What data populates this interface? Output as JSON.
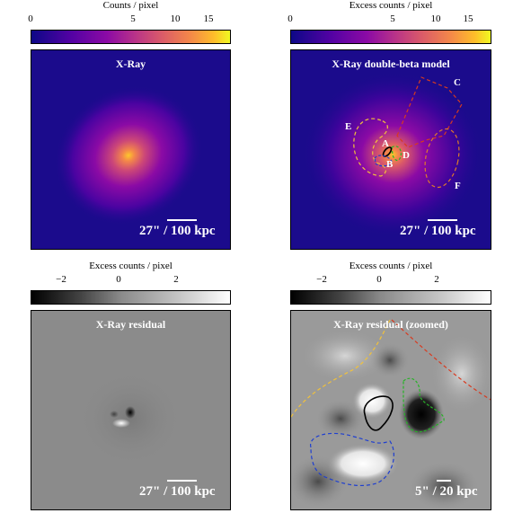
{
  "panels": {
    "top_left": {
      "colorbar_label": "Counts / pixel",
      "ticks": [
        "0",
        "5",
        "10",
        "15"
      ],
      "title": "X-Ray",
      "scale_label": "27\" / 100 kpc"
    },
    "top_right": {
      "colorbar_label": "Excess counts / pixel",
      "ticks": [
        "0",
        "5",
        "10",
        "15"
      ],
      "title": "X-Ray double-beta model",
      "scale_label": "27\" / 100 kpc",
      "regions": [
        "A",
        "B",
        "C",
        "D",
        "E",
        "F"
      ]
    },
    "bottom_left": {
      "colorbar_label": "Excess counts / pixel",
      "ticks": [
        "−2",
        "0",
        "2"
      ],
      "title": "X-Ray residual",
      "scale_label": "27\" / 100 kpc"
    },
    "bottom_right": {
      "colorbar_label": "Excess counts / pixel",
      "ticks": [
        "−2",
        "0",
        "2"
      ],
      "title": "X-Ray residual (zoomed)",
      "scale_label": "5\" / 20 kpc"
    }
  },
  "colors": {
    "plasma_start": "#0d0887",
    "plasma_end": "#f0f921",
    "region_A": "#000000",
    "region_B": "#1f3fd0",
    "region_C": "#d83a1f",
    "region_D": "#27b327",
    "region_E": "#f2c23a",
    "region_F": "#e07a2a"
  }
}
